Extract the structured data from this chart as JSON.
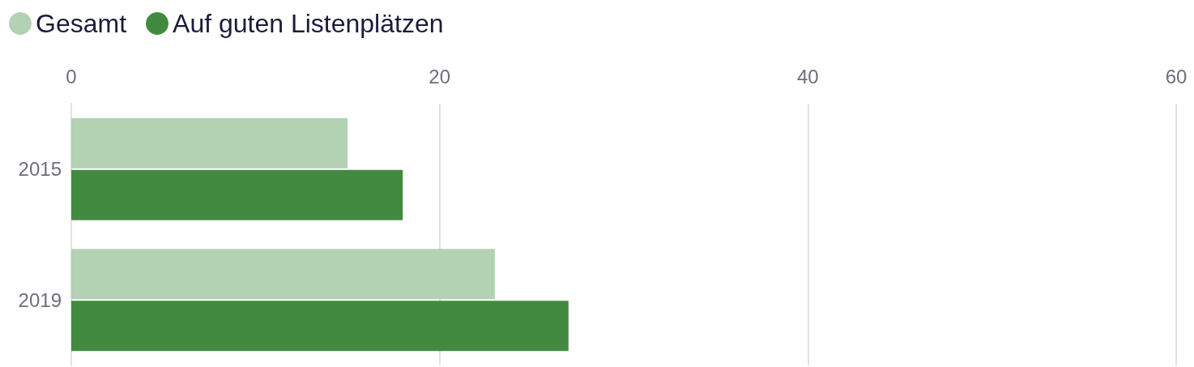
{
  "chart_data": {
    "type": "bar",
    "orientation": "horizontal",
    "categories": [
      "2015",
      "2019"
    ],
    "series": [
      {
        "name": "Gesamt",
        "color": "#b3d1b3",
        "values": [
          15,
          23
        ]
      },
      {
        "name": "Auf guten Listenplätzen",
        "color": "#428a3f",
        "values": [
          18,
          27
        ]
      }
    ],
    "xlim": [
      0,
      60
    ],
    "xticks": [
      0,
      20,
      40,
      60
    ],
    "grid": "x",
    "legend": "top left"
  }
}
